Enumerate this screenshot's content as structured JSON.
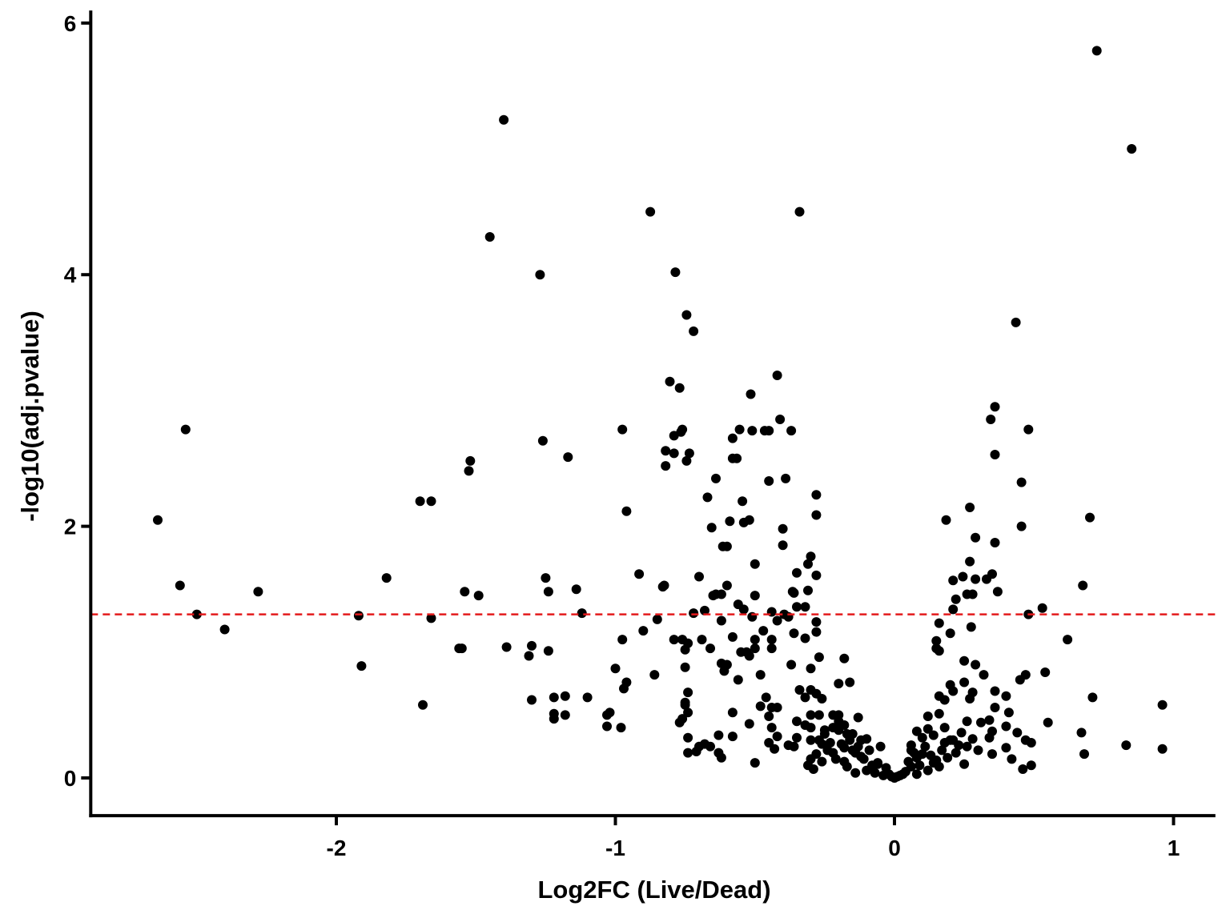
{
  "chart_data": {
    "type": "scatter",
    "title": "",
    "xlabel": "Log2FC (Live/Dead)",
    "ylabel": "-log10(adj.pvalue)",
    "xlim": [
      -2.88,
      1.15
    ],
    "ylim": [
      -0.3,
      6.1
    ],
    "x_ticks": [
      -2,
      -1,
      0,
      1
    ],
    "x_tick_labels": [
      "-2",
      "-1",
      "0",
      "1"
    ],
    "y_ticks": [
      0,
      2,
      4,
      6
    ],
    "y_tick_labels": [
      "0",
      "2",
      "4",
      "6"
    ],
    "grid": false,
    "legend": "none",
    "point_color": "#000000",
    "threshold_line": {
      "y": 1.3,
      "style": "dashed",
      "color": "#e31a1c"
    },
    "points": [
      [
        0.725,
        5.78
      ],
      [
        0.85,
        5.0
      ],
      [
        -1.4,
        5.23
      ],
      [
        -0.875,
        4.5
      ],
      [
        -0.34,
        4.5
      ],
      [
        -1.45,
        4.3
      ],
      [
        -1.27,
        4.0
      ],
      [
        -0.785,
        4.02
      ],
      [
        0.435,
        3.62
      ],
      [
        -0.745,
        3.68
      ],
      [
        -0.72,
        3.55
      ],
      [
        -0.42,
        3.2
      ],
      [
        -0.805,
        3.15
      ],
      [
        -0.77,
        3.1
      ],
      [
        -0.515,
        3.05
      ],
      [
        0.36,
        2.95
      ],
      [
        0.345,
        2.85
      ],
      [
        -0.41,
        2.85
      ],
      [
        -0.76,
        2.77
      ],
      [
        -0.765,
        2.75
      ],
      [
        -0.79,
        2.72
      ],
      [
        -0.975,
        2.77
      ],
      [
        -0.555,
        2.77
      ],
      [
        -0.51,
        2.76
      ],
      [
        -0.465,
        2.76
      ],
      [
        -0.45,
        2.76
      ],
      [
        -0.37,
        2.76
      ],
      [
        -0.58,
        2.7
      ],
      [
        0.48,
        2.77
      ],
      [
        -2.54,
        2.77
      ],
      [
        -1.26,
        2.68
      ],
      [
        -0.82,
        2.6
      ],
      [
        -0.79,
        2.58
      ],
      [
        -0.735,
        2.58
      ],
      [
        0.36,
        2.57
      ],
      [
        -1.17,
        2.55
      ],
      [
        -0.58,
        2.54
      ],
      [
        -0.565,
        2.54
      ],
      [
        -1.52,
        2.52
      ],
      [
        -0.745,
        2.52
      ],
      [
        -0.82,
        2.48
      ],
      [
        -1.525,
        2.44
      ],
      [
        -0.64,
        2.38
      ],
      [
        -0.39,
        2.38
      ],
      [
        -0.45,
        2.36
      ],
      [
        0.455,
        2.35
      ],
      [
        -0.28,
        2.25
      ],
      [
        -0.67,
        2.23
      ],
      [
        -0.545,
        2.2
      ],
      [
        -1.7,
        2.2
      ],
      [
        -1.66,
        2.2
      ],
      [
        0.27,
        2.15
      ],
      [
        -0.96,
        2.12
      ],
      [
        -0.28,
        2.09
      ],
      [
        0.185,
        2.05
      ],
      [
        -2.64,
        2.05
      ],
      [
        -0.59,
        2.04
      ],
      [
        -0.54,
        2.03
      ],
      [
        -0.52,
        2.05
      ],
      [
        0.455,
        2.0
      ],
      [
        -0.655,
        1.99
      ],
      [
        -0.4,
        1.98
      ],
      [
        0.7,
        2.07
      ],
      [
        0.29,
        1.91
      ],
      [
        0.36,
        1.87
      ],
      [
        -0.615,
        1.84
      ],
      [
        -0.4,
        1.85
      ],
      [
        -0.6,
        1.84
      ],
      [
        -0.3,
        1.76
      ],
      [
        -0.31,
        1.7
      ],
      [
        -0.5,
        1.7
      ],
      [
        0.27,
        1.72
      ],
      [
        -0.35,
        1.63
      ],
      [
        0.35,
        1.62
      ],
      [
        -0.28,
        1.61
      ],
      [
        -0.915,
        1.62
      ],
      [
        -0.7,
        1.6
      ],
      [
        -1.82,
        1.59
      ],
      [
        -1.25,
        1.59
      ],
      [
        0.245,
        1.6
      ],
      [
        0.29,
        1.58
      ],
      [
        0.33,
        1.58
      ],
      [
        0.21,
        1.57
      ],
      [
        -2.56,
        1.53
      ],
      [
        -0.6,
        1.53
      ],
      [
        -0.825,
        1.53
      ],
      [
        -0.83,
        1.52
      ],
      [
        -0.31,
        1.49
      ],
      [
        0.675,
        1.53
      ],
      [
        -1.14,
        1.5
      ],
      [
        -0.365,
        1.48
      ],
      [
        -2.28,
        1.48
      ],
      [
        -1.54,
        1.48
      ],
      [
        -1.24,
        1.48
      ],
      [
        -0.36,
        1.47
      ],
      [
        0.37,
        1.48
      ],
      [
        -0.65,
        1.45
      ],
      [
        -1.49,
        1.45
      ],
      [
        -0.64,
        1.46
      ],
      [
        -0.62,
        1.46
      ],
      [
        -0.5,
        1.45
      ],
      [
        0.26,
        1.46
      ],
      [
        0.28,
        1.46
      ],
      [
        0.22,
        1.42
      ],
      [
        -0.35,
        1.36
      ],
      [
        -0.32,
        1.36
      ],
      [
        -0.56,
        1.38
      ],
      [
        0.21,
        1.34
      ],
      [
        0.53,
        1.35
      ],
      [
        -0.54,
        1.34
      ],
      [
        -0.68,
        1.33
      ],
      [
        -0.72,
        1.31
      ],
      [
        -0.44,
        1.32
      ],
      [
        -0.395,
        1.3
      ],
      [
        -2.5,
        1.3
      ],
      [
        -1.92,
        1.29
      ],
      [
        -1.12,
        1.31
      ],
      [
        -0.51,
        1.28
      ],
      [
        -0.38,
        1.28
      ],
      [
        0.48,
        1.3
      ],
      [
        -1.66,
        1.27
      ],
      [
        -0.85,
        1.26
      ],
      [
        -0.62,
        1.25
      ],
      [
        -0.42,
        1.25
      ],
      [
        0.16,
        1.23
      ],
      [
        -0.28,
        1.24
      ],
      [
        0.275,
        1.2
      ],
      [
        -2.4,
        1.18
      ],
      [
        -0.9,
        1.17
      ],
      [
        -0.47,
        1.17
      ],
      [
        -0.36,
        1.15
      ],
      [
        -0.28,
        1.16
      ],
      [
        0.2,
        1.15
      ],
      [
        -0.975,
        1.1
      ],
      [
        -0.79,
        1.1
      ],
      [
        -0.76,
        1.1
      ],
      [
        -0.74,
        1.07
      ],
      [
        -0.69,
        1.1
      ],
      [
        -0.58,
        1.12
      ],
      [
        -0.5,
        1.1
      ],
      [
        -0.44,
        1.1
      ],
      [
        -0.32,
        1.11
      ],
      [
        0.15,
        1.09
      ],
      [
        0.62,
        1.1
      ],
      [
        -1.56,
        1.03
      ],
      [
        -1.55,
        1.03
      ],
      [
        -1.39,
        1.04
      ],
      [
        -1.3,
        1.05
      ],
      [
        -1.24,
        1.01
      ],
      [
        -0.75,
        1.02
      ],
      [
        -0.66,
        1.03
      ],
      [
        -0.5,
        1.03
      ],
      [
        -0.55,
        1.0
      ],
      [
        -0.53,
        1.0
      ],
      [
        -0.44,
        1.03
      ],
      [
        0.15,
        1.03
      ],
      [
        0.16,
        1.01
      ],
      [
        -1.31,
        0.97
      ],
      [
        -0.52,
        0.97
      ],
      [
        -0.27,
        0.96
      ],
      [
        -0.18,
        0.95
      ],
      [
        -0.62,
        0.91
      ],
      [
        -0.6,
        0.9
      ],
      [
        -0.37,
        0.9
      ],
      [
        0.25,
        0.93
      ],
      [
        0.29,
        0.9
      ],
      [
        -0.75,
        0.88
      ],
      [
        -1.91,
        0.89
      ],
      [
        -1.0,
        0.87
      ],
      [
        -0.3,
        0.87
      ],
      [
        -0.61,
        0.85
      ],
      [
        0.54,
        0.84
      ],
      [
        0.47,
        0.82
      ],
      [
        -0.86,
        0.82
      ],
      [
        -0.48,
        0.82
      ],
      [
        0.32,
        0.82
      ],
      [
        0.45,
        0.78
      ],
      [
        -0.56,
        0.78
      ],
      [
        -0.96,
        0.76
      ],
      [
        -0.16,
        0.76
      ],
      [
        -0.2,
        0.75
      ],
      [
        0.2,
        0.74
      ],
      [
        0.25,
        0.76
      ],
      [
        -0.97,
        0.71
      ],
      [
        -0.34,
        0.7
      ],
      [
        -0.3,
        0.7
      ],
      [
        -0.74,
        0.68
      ],
      [
        0.21,
        0.69
      ],
      [
        0.36,
        0.69
      ],
      [
        0.28,
        0.68
      ],
      [
        -0.28,
        0.67
      ],
      [
        -1.22,
        0.64
      ],
      [
        -1.18,
        0.65
      ],
      [
        -1.1,
        0.64
      ],
      [
        -0.32,
        0.64
      ],
      [
        -0.26,
        0.63
      ],
      [
        0.16,
        0.65
      ],
      [
        0.27,
        0.63
      ],
      [
        0.4,
        0.65
      ],
      [
        0.71,
        0.64
      ],
      [
        -1.3,
        0.62
      ],
      [
        -0.46,
        0.64
      ],
      [
        -0.75,
        0.6
      ],
      [
        0.18,
        0.62
      ],
      [
        -0.75,
        0.58
      ],
      [
        -1.69,
        0.58
      ],
      [
        -0.48,
        0.57
      ],
      [
        -0.44,
        0.56
      ],
      [
        -0.42,
        0.56
      ],
      [
        0.96,
        0.58
      ],
      [
        -1.22,
        0.51
      ],
      [
        -1.18,
        0.5
      ],
      [
        -1.02,
        0.52
      ],
      [
        -0.58,
        0.52
      ],
      [
        -0.74,
        0.52
      ],
      [
        0.36,
        0.56
      ],
      [
        -1.03,
        0.5
      ],
      [
        -0.3,
        0.5
      ],
      [
        -0.27,
        0.5
      ],
      [
        -0.2,
        0.5
      ],
      [
        -0.22,
        0.5
      ],
      [
        0.16,
        0.51
      ],
      [
        0.41,
        0.52
      ],
      [
        -1.22,
        0.47
      ],
      [
        -0.45,
        0.49
      ],
      [
        -0.13,
        0.48
      ],
      [
        0.12,
        0.49
      ],
      [
        0.34,
        0.46
      ],
      [
        0.26,
        0.45
      ],
      [
        0.31,
        0.44
      ],
      [
        -0.76,
        0.47
      ],
      [
        -0.77,
        0.44
      ],
      [
        -0.52,
        0.43
      ],
      [
        -0.35,
        0.45
      ],
      [
        -0.32,
        0.42
      ],
      [
        -0.22,
        0.4
      ],
      [
        -0.2,
        0.4
      ],
      [
        -0.18,
        0.42
      ],
      [
        0.55,
        0.44
      ],
      [
        -1.03,
        0.41
      ],
      [
        -0.98,
        0.4
      ],
      [
        -0.44,
        0.4
      ],
      [
        -0.3,
        0.4
      ],
      [
        0.18,
        0.4
      ],
      [
        0.12,
        0.39
      ],
      [
        0.4,
        0.41
      ],
      [
        -0.25,
        0.38
      ],
      [
        -0.2,
        0.38
      ],
      [
        -0.15,
        0.35
      ],
      [
        0.08,
        0.37
      ],
      [
        0.24,
        0.36
      ],
      [
        0.35,
        0.37
      ],
      [
        0.44,
        0.36
      ],
      [
        0.67,
        0.36
      ],
      [
        0.14,
        0.34
      ],
      [
        -0.74,
        0.32
      ],
      [
        -0.63,
        0.34
      ],
      [
        -0.58,
        0.33
      ],
      [
        -0.42,
        0.33
      ],
      [
        -0.35,
        0.32
      ],
      [
        -0.3,
        0.3
      ],
      [
        -0.12,
        0.3
      ],
      [
        -0.1,
        0.31
      ],
      [
        0.1,
        0.32
      ],
      [
        0.2,
        0.3
      ],
      [
        0.28,
        0.31
      ],
      [
        0.34,
        0.32
      ],
      [
        0.47,
        0.3
      ],
      [
        -0.68,
        0.27
      ],
      [
        -0.45,
        0.28
      ],
      [
        -0.38,
        0.26
      ],
      [
        -0.26,
        0.27
      ],
      [
        -0.05,
        0.25
      ],
      [
        0.06,
        0.26
      ],
      [
        0.18,
        0.28
      ],
      [
        0.26,
        0.25
      ],
      [
        0.49,
        0.28
      ],
      [
        0.83,
        0.26
      ],
      [
        -0.7,
        0.25
      ],
      [
        -0.66,
        0.25
      ],
      [
        -0.43,
        0.23
      ],
      [
        -0.36,
        0.25
      ],
      [
        -0.18,
        0.24
      ],
      [
        -0.15,
        0.22
      ],
      [
        0.06,
        0.22
      ],
      [
        0.3,
        0.22
      ],
      [
        0.4,
        0.24
      ],
      [
        0.96,
        0.23
      ],
      [
        -0.74,
        0.2
      ],
      [
        -0.71,
        0.21
      ],
      [
        -0.63,
        0.2
      ],
      [
        -0.28,
        0.19
      ],
      [
        -0.22,
        0.2
      ],
      [
        0.1,
        0.19
      ],
      [
        0.22,
        0.2
      ],
      [
        0.35,
        0.19
      ],
      [
        0.68,
        0.19
      ],
      [
        -0.62,
        0.16
      ],
      [
        -0.3,
        0.15
      ],
      [
        -0.12,
        0.17
      ],
      [
        0.08,
        0.16
      ],
      [
        0.42,
        0.15
      ],
      [
        -0.5,
        0.12
      ],
      [
        -0.26,
        0.13
      ],
      [
        -0.18,
        0.13
      ],
      [
        -0.06,
        0.11
      ],
      [
        0.14,
        0.12
      ],
      [
        0.25,
        0.11
      ],
      [
        -0.31,
        0.1
      ],
      [
        -0.08,
        0.1
      ],
      [
        -0.03,
        0.08
      ],
      [
        0.06,
        0.09
      ],
      [
        0.16,
        0.09
      ],
      [
        0.49,
        0.1
      ],
      [
        0.46,
        0.07
      ],
      [
        -0.29,
        0.07
      ],
      [
        -0.1,
        0.06
      ],
      [
        0.04,
        0.05
      ],
      [
        0.12,
        0.06
      ],
      [
        -0.14,
        0.04
      ],
      [
        -0.07,
        0.04
      ],
      [
        -0.02,
        0.03
      ],
      [
        0.02,
        0.02
      ],
      [
        0.08,
        0.03
      ],
      [
        0.0,
        0.0
      ],
      [
        -0.01,
        0.01
      ],
      [
        0.01,
        0.01
      ],
      [
        -0.04,
        0.02
      ],
      [
        0.03,
        0.03
      ],
      [
        -0.25,
        0.35
      ],
      [
        -0.23,
        0.28
      ],
      [
        -0.16,
        0.3
      ],
      [
        -0.14,
        0.2
      ],
      [
        -0.11,
        0.15
      ],
      [
        -0.09,
        0.22
      ],
      [
        -0.06,
        0.12
      ],
      [
        0.05,
        0.13
      ],
      [
        0.07,
        0.2
      ],
      [
        0.09,
        0.1
      ],
      [
        0.11,
        0.25
      ],
      [
        0.13,
        0.18
      ],
      [
        0.15,
        0.14
      ],
      [
        0.17,
        0.22
      ],
      [
        0.19,
        0.16
      ],
      [
        0.21,
        0.3
      ],
      [
        0.23,
        0.26
      ],
      [
        -0.27,
        0.3
      ],
      [
        -0.24,
        0.22
      ],
      [
        -0.21,
        0.15
      ],
      [
        -0.19,
        0.27
      ],
      [
        -0.17,
        0.09
      ],
      [
        -0.13,
        0.25
      ],
      [
        -0.2,
        0.45
      ],
      [
        -0.17,
        0.35
      ]
    ]
  }
}
